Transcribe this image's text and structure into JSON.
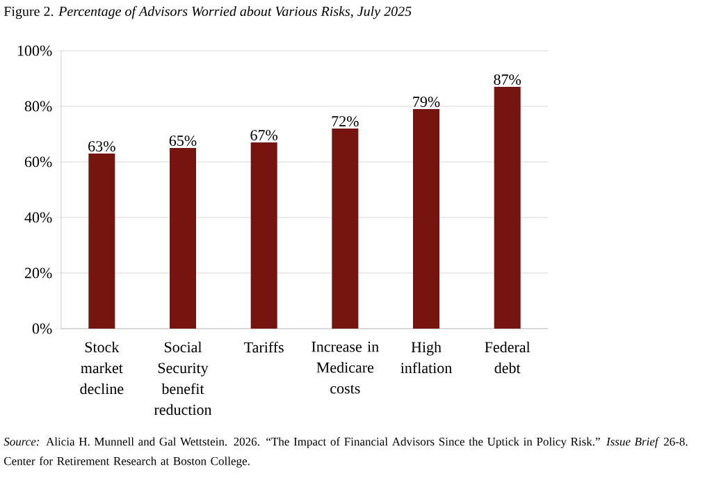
{
  "chart_data": {
    "type": "bar",
    "title": "Figure 2. *Percentage of Advisors Worried about Various Risks, July 2025*",
    "categories": [
      "Stock market decline",
      "Social Security benefit reduction",
      "Tariffs",
      "Increase in Medicare costs",
      "High inflation",
      "Federal debt"
    ],
    "values": [
      63,
      65,
      67,
      72,
      79,
      87
    ],
    "value_labels": [
      "63%",
      "65%",
      "67%",
      "72%",
      "79%",
      "87%"
    ],
    "color": "#761410",
    "ylim": [
      0,
      100
    ],
    "yticks": [
      {
        "value": 0,
        "label": "0%"
      },
      {
        "value": 20,
        "label": "20%"
      },
      {
        "value": 40,
        "label": "40%"
      },
      {
        "value": 60,
        "label": "60%"
      },
      {
        "value": 80,
        "label": "80%"
      },
      {
        "value": 100,
        "label": "100%"
      }
    ],
    "grid": "y",
    "annotations": [
      "*Source:* Alicia H. Munnell and Gal Wettstein. 2026. “The Impact of Financial Advisors Since the Uptick in Policy Risk.” *Issue Brief* 26-8. Center for Retirement Research at Boston College."
    ]
  }
}
